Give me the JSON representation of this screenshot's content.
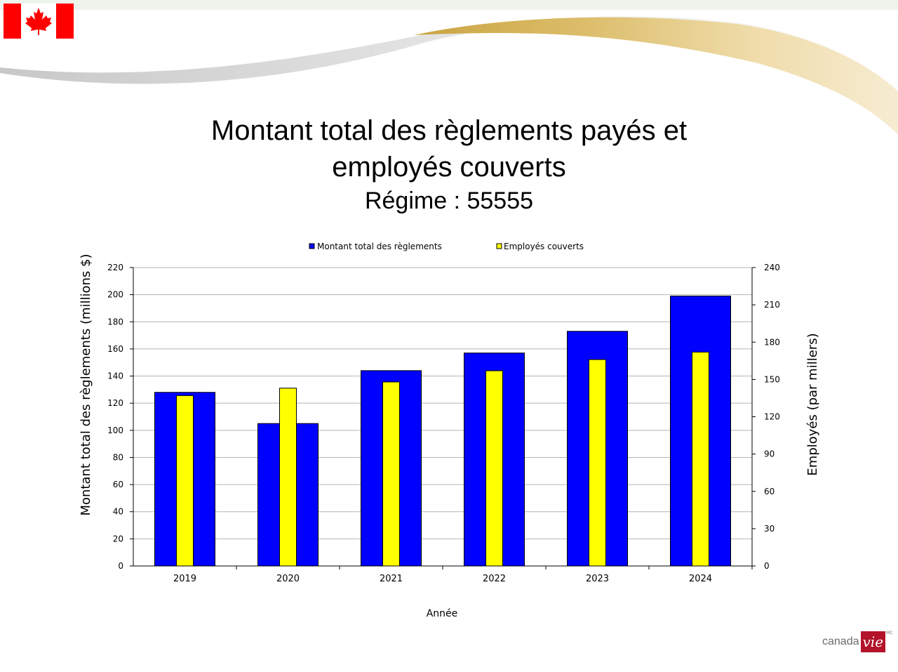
{
  "slide": {
    "title_line1": "Montant total des règlements payés et",
    "title_line2": "employés couverts",
    "subtitle": "Régime : 55555",
    "logo_word": "canada",
    "logo_box": "vie",
    "logo_mark": "MC"
  },
  "colors": {
    "series1": "#0000ff",
    "series2": "#ffff00",
    "flag_red": "#ff0000",
    "accent_gold": "#d9b960"
  },
  "icons": [
    "canada-flag-icon",
    "maple-leaf-icon"
  ],
  "chart_data": {
    "type": "bar",
    "categories": [
      "2019",
      "2020",
      "2021",
      "2022",
      "2023",
      "2024"
    ],
    "series": [
      {
        "name": "Montant total des règlements",
        "axis": "left",
        "values": [
          128,
          105,
          144,
          157,
          173,
          199
        ]
      },
      {
        "name": "Employés couverts",
        "axis": "right",
        "values": [
          137,
          143,
          148,
          157,
          166,
          172
        ]
      }
    ],
    "xlabel": "Année",
    "ylabel": "Montant total des règlements (millions $)",
    "y2label": "Employés (par millers)",
    "ylim": [
      0,
      220
    ],
    "y2lim": [
      0,
      240
    ],
    "yticks": [
      "0",
      "20",
      "40",
      "60",
      "80",
      "100",
      "120",
      "140",
      "160",
      "180",
      "200",
      "220"
    ],
    "y2ticks": [
      "0",
      "30",
      "60",
      "90",
      "120",
      "150",
      "180",
      "210",
      "240"
    ],
    "legend_position": "top",
    "grid": true
  }
}
